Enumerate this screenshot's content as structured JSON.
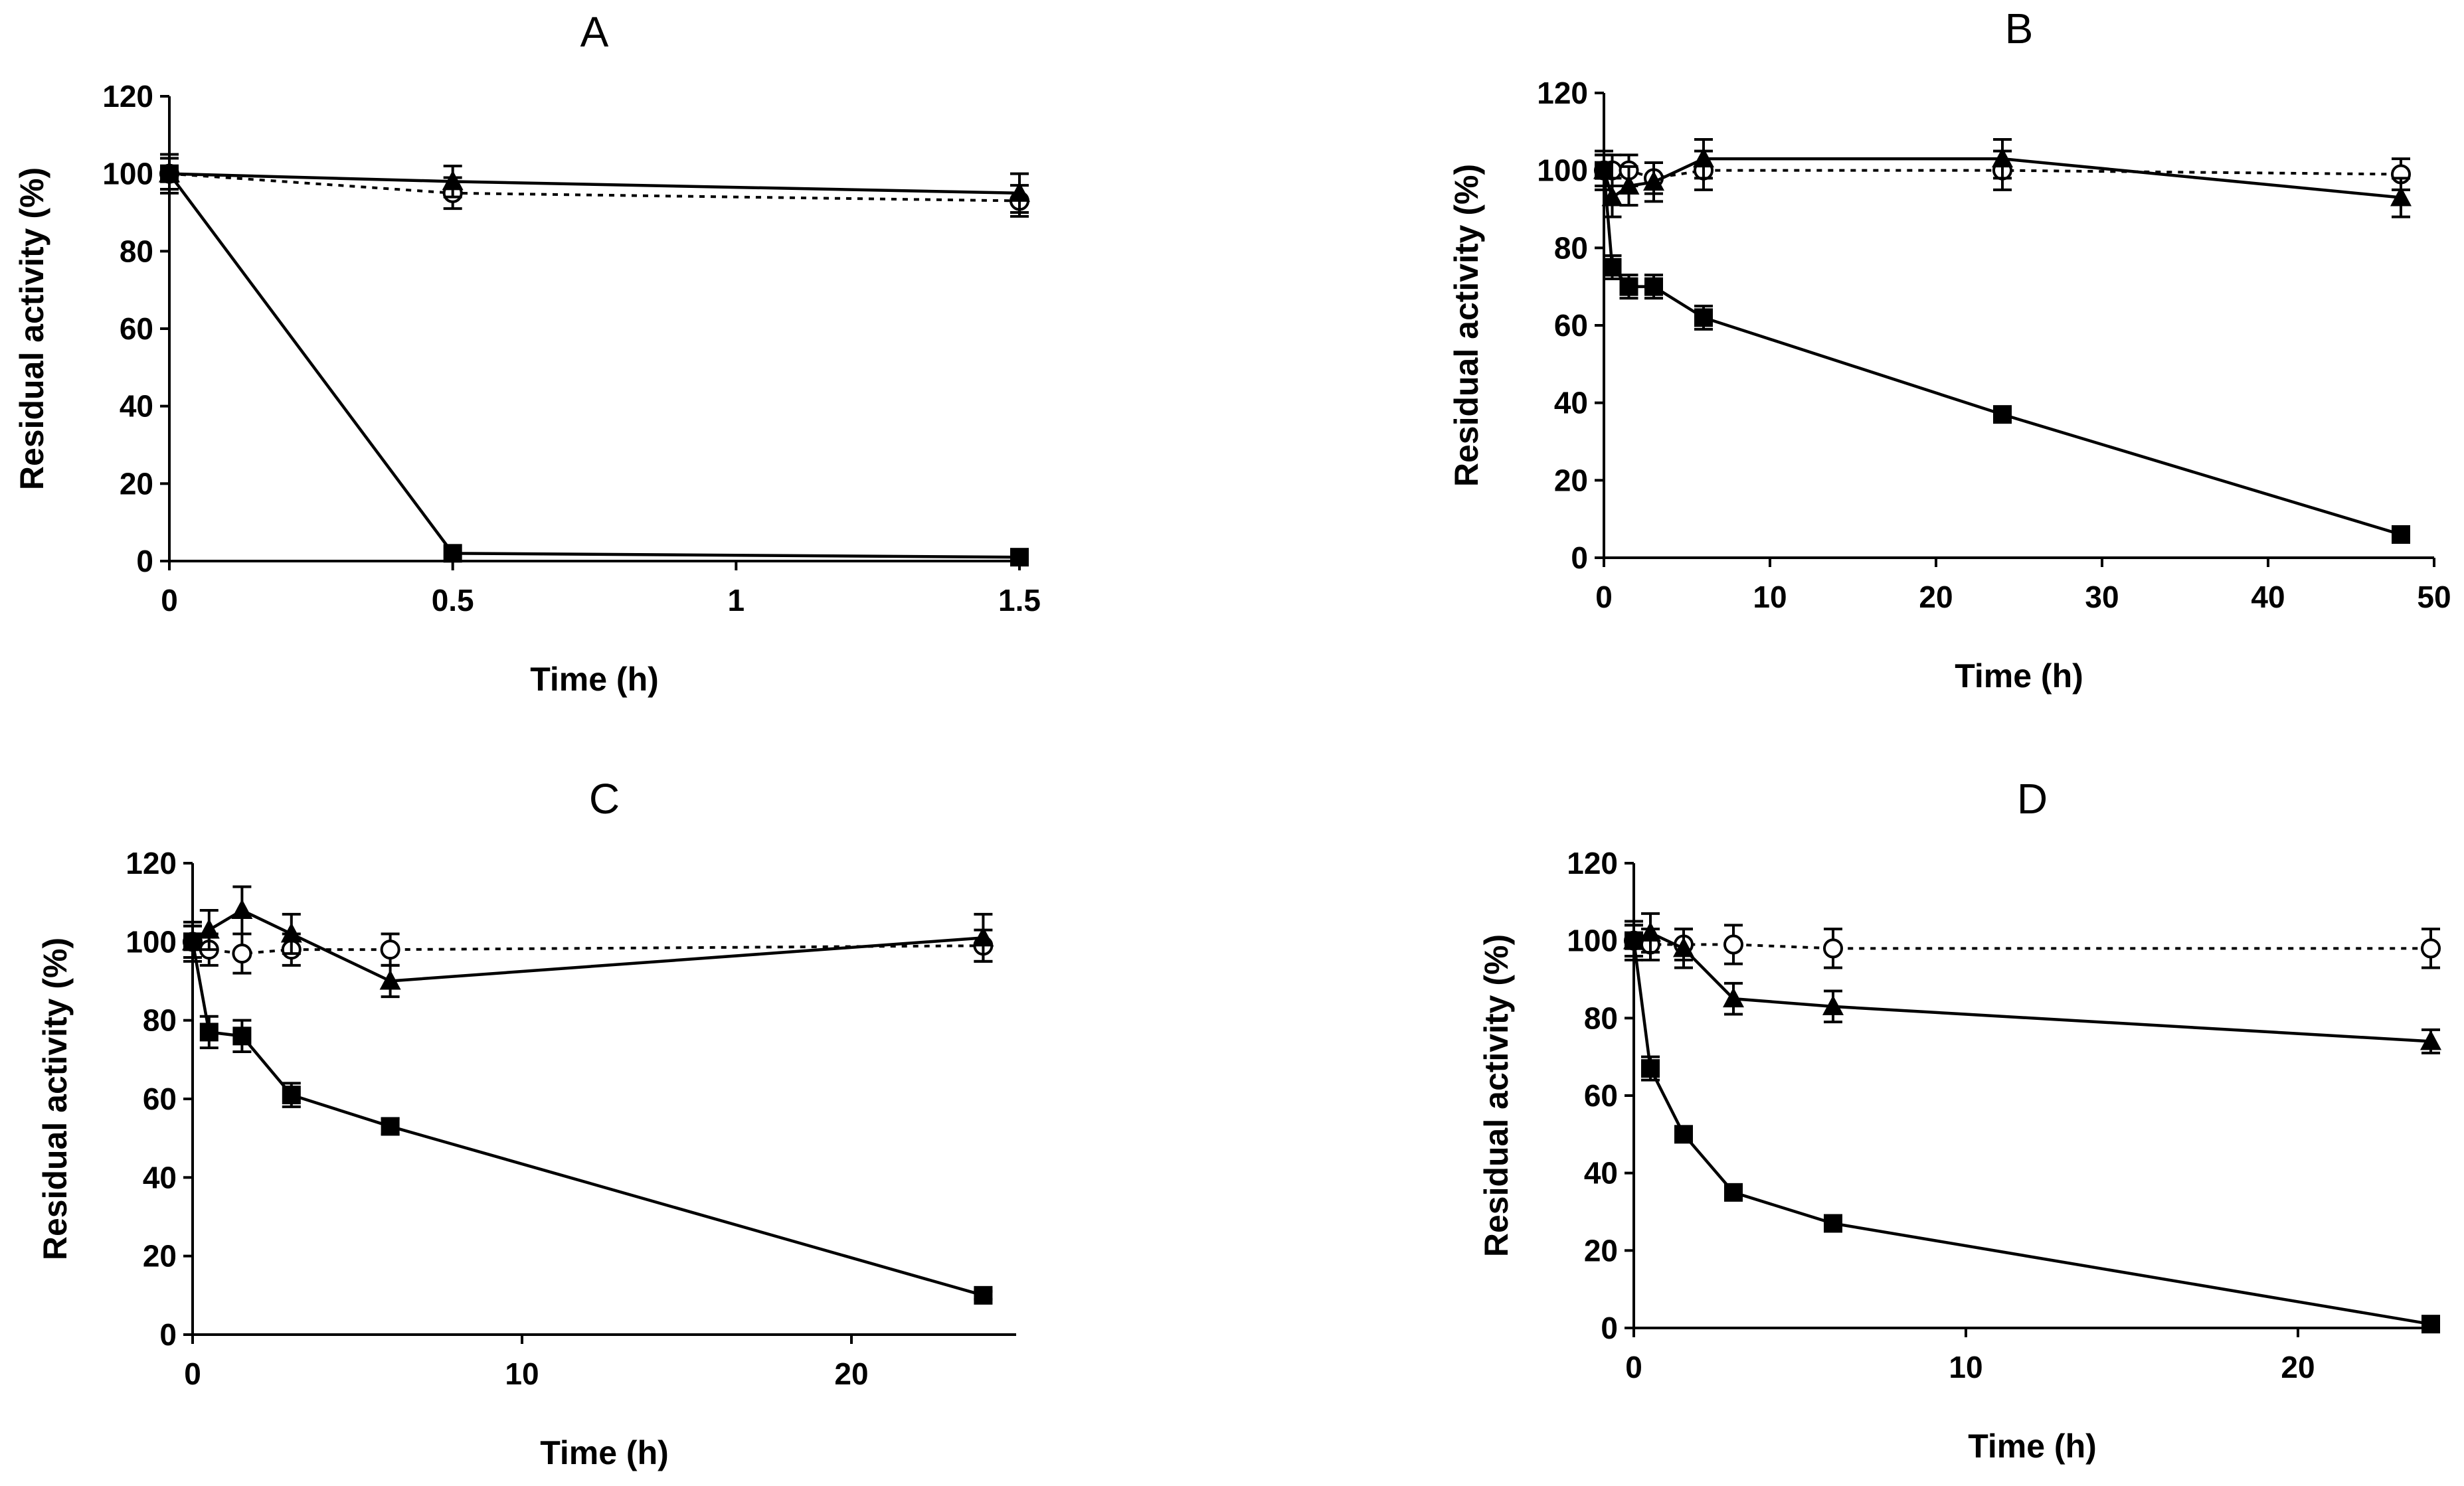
{
  "chart_data": [
    {
      "type": "line",
      "title": "A",
      "xlabel": "Time (h)",
      "ylabel": "Residual activity (%)",
      "xlim": [
        0,
        1.5
      ],
      "ylim": [
        0,
        120
      ],
      "xticks": [
        0,
        0.5,
        1,
        1.5
      ],
      "xtick_labels": [
        "0",
        "0.5",
        "1",
        "1.5"
      ],
      "yticks": [
        0,
        20,
        40,
        60,
        80,
        100,
        120
      ],
      "ytick_labels": [
        "0",
        "20",
        "40",
        "60",
        "80",
        "100",
        "120"
      ],
      "x": [
        0,
        0.5,
        1.5
      ],
      "series": [
        {
          "name": "open circles (dotted)",
          "marker": "circle-open",
          "style": "dotted",
          "values": [
            100,
            95,
            93
          ],
          "errors": [
            4,
            4,
            4
          ]
        },
        {
          "name": "triangles",
          "marker": "triangle",
          "style": "solid",
          "values": [
            100,
            98,
            95
          ],
          "errors": [
            5,
            4,
            5
          ]
        },
        {
          "name": "squares",
          "marker": "square",
          "style": "solid",
          "values": [
            100,
            2,
            1
          ],
          "errors": [
            0,
            0,
            0
          ]
        }
      ]
    },
    {
      "type": "line",
      "title": "B",
      "xlabel": "Time (h)",
      "ylabel": "Residual activity (%)",
      "xlim": [
        0,
        50
      ],
      "ylim": [
        0,
        120
      ],
      "xticks": [
        0,
        10,
        20,
        30,
        40,
        50
      ],
      "xtick_labels": [
        "0",
        "10",
        "20",
        "30",
        "40",
        "50"
      ],
      "yticks": [
        0,
        20,
        40,
        60,
        80,
        100,
        120
      ],
      "ytick_labels": [
        "0",
        "20",
        "40",
        "60",
        "80",
        "100",
        "120"
      ],
      "x": [
        0,
        0.5,
        1.5,
        3,
        6,
        24,
        48
      ],
      "series": [
        {
          "name": "open circles (dotted)",
          "marker": "circle-open",
          "style": "dotted",
          "values": [
            100,
            100,
            100,
            98,
            100,
            100,
            99
          ],
          "errors": [
            4,
            4,
            4,
            4,
            5,
            5,
            4
          ]
        },
        {
          "name": "triangles",
          "marker": "triangle",
          "style": "solid",
          "values": [
            100,
            93,
            96,
            97,
            103,
            103,
            93
          ],
          "errors": [
            5,
            5,
            5,
            5,
            5,
            5,
            5
          ]
        },
        {
          "name": "squares",
          "marker": "square",
          "style": "solid",
          "values": [
            100,
            75,
            70,
            70,
            62,
            37,
            6
          ],
          "errors": [
            4,
            3,
            3,
            3,
            3,
            2,
            2
          ]
        }
      ]
    },
    {
      "type": "line",
      "title": "C",
      "xlabel": "Time (h)",
      "ylabel": "Residual activity (%)",
      "xlim": [
        0,
        25
      ],
      "ylim": [
        0,
        120
      ],
      "xticks": [
        0,
        10,
        20
      ],
      "xtick_labels": [
        "0",
        "10",
        "20"
      ],
      "yticks": [
        0,
        20,
        40,
        60,
        80,
        100,
        120
      ],
      "ytick_labels": [
        "0",
        "20",
        "40",
        "60",
        "80",
        "100",
        "120"
      ],
      "x": [
        0,
        0.5,
        1.5,
        3,
        6,
        24
      ],
      "series": [
        {
          "name": "open circles (dotted)",
          "marker": "circle-open",
          "style": "dotted",
          "values": [
            100,
            98,
            97,
            98,
            98,
            99
          ],
          "errors": [
            4,
            4,
            5,
            4,
            4,
            4
          ]
        },
        {
          "name": "triangles",
          "marker": "triangle",
          "style": "solid",
          "values": [
            100,
            103,
            108,
            102,
            90,
            101
          ],
          "errors": [
            5,
            5,
            6,
            5,
            4,
            6
          ]
        },
        {
          "name": "squares",
          "marker": "square",
          "style": "solid",
          "values": [
            100,
            77,
            76,
            61,
            53,
            10
          ],
          "errors": [
            4,
            4,
            4,
            3,
            2,
            1
          ]
        }
      ]
    },
    {
      "type": "line",
      "title": "D",
      "xlabel": "Time (h)",
      "ylabel": "Residual activity (%)",
      "xlim": [
        0,
        24
      ],
      "ylim": [
        0,
        120
      ],
      "xticks": [
        0,
        10,
        20
      ],
      "xtick_labels": [
        "0",
        "10",
        "20"
      ],
      "yticks": [
        0,
        20,
        40,
        60,
        80,
        100,
        120
      ],
      "ytick_labels": [
        "0",
        "20",
        "40",
        "60",
        "80",
        "100",
        "120"
      ],
      "x": [
        0,
        0.5,
        1.5,
        3,
        6,
        24
      ],
      "series": [
        {
          "name": "open circles (dotted)",
          "marker": "circle-open",
          "style": "dotted",
          "values": [
            100,
            99,
            99,
            99,
            98,
            98
          ],
          "errors": [
            4,
            4,
            4,
            5,
            5,
            5
          ]
        },
        {
          "name": "triangles",
          "marker": "triangle",
          "style": "solid",
          "values": [
            100,
            102,
            98,
            85,
            83,
            74
          ],
          "errors": [
            5,
            5,
            5,
            4,
            4,
            3
          ]
        },
        {
          "name": "squares",
          "marker": "square",
          "style": "solid",
          "values": [
            100,
            67,
            50,
            35,
            27,
            1
          ],
          "errors": [
            4,
            3,
            2,
            1,
            1,
            1
          ]
        }
      ]
    }
  ]
}
